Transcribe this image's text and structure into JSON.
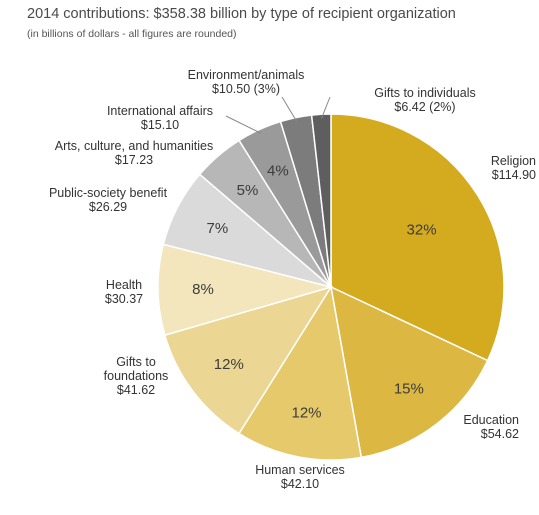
{
  "chart_data": {
    "type": "pie",
    "title": "2014 contributions: $358.38 billion by type of recipient organization",
    "subtitle": "(in billions of dollars - all figures are rounded)",
    "slices": [
      {
        "label": "Religion",
        "value": 114.9,
        "value_label": "$114.90",
        "pct_label": "32%",
        "color": "#d4aa1f"
      },
      {
        "label": "Education",
        "value": 54.62,
        "value_label": "$54.62",
        "pct_label": "15%",
        "color": "#dcb843"
      },
      {
        "label": "Human services",
        "value": 42.1,
        "value_label": "$42.10",
        "pct_label": "12%",
        "color": "#e5c96b"
      },
      {
        "label": "Gifts to foundations",
        "value": 41.62,
        "value_label": "$41.62",
        "pct_label": "12%",
        "color": "#ecd693"
      },
      {
        "label": "Health",
        "value": 30.37,
        "value_label": "$30.37",
        "pct_label": "8%",
        "color": "#f3e6bd"
      },
      {
        "label": "Public-society benefit",
        "value": 26.29,
        "value_label": "$26.29",
        "pct_label": "7%",
        "color": "#dadada"
      },
      {
        "label": "Arts, culture, and humanities",
        "value": 17.23,
        "value_label": "$17.23",
        "pct_label": "5%",
        "color": "#b7b7b7"
      },
      {
        "label": "International affairs",
        "value": 15.1,
        "value_label": "$15.10",
        "pct_label": "4%",
        "color": "#9a9a9a"
      },
      {
        "label": "Environment/animals",
        "value": 10.5,
        "value_label": "$10.50 (3%)",
        "pct_label": "",
        "color": "#7c7c7c"
      },
      {
        "label": "Gifts to individuals",
        "value": 6.42,
        "value_label": "$6.42 (2%)",
        "pct_label": "",
        "color": "#5e5e5e"
      }
    ]
  }
}
